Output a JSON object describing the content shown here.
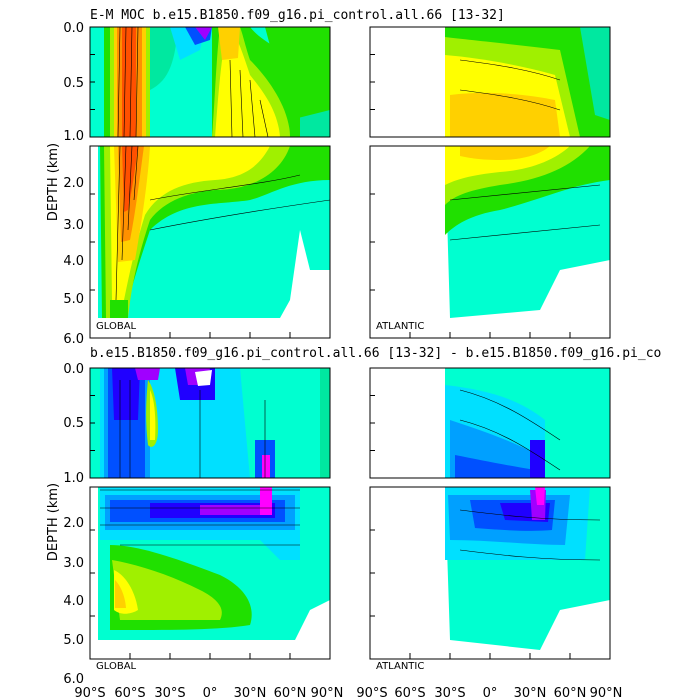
{
  "figure": {
    "title_top": "E-M MOC   b.e15.B1850.f09_g16.pi_control.all.66  [13-32]",
    "title_bottom": "b.e15.B1850.f09_g16.pi_control.all.66  [13-32]  -  b.e15.B1850.f09_g16.pi_co",
    "ylabel": "DEPTH (km)",
    "x_tick_labels_left": [
      "90°S",
      "60°S",
      "30°S",
      "0°",
      "30°N",
      "60°N",
      "90°N"
    ],
    "x_tick_labels_right": [
      "90°S",
      "60°S",
      "30°S",
      "0°",
      "30°N",
      "60°N",
      "90°N"
    ],
    "y_tick_labels_upper": [
      "0.0",
      "0.5",
      "1.0"
    ],
    "y_tick_labels_lower": [
      "2.0",
      "3.0",
      "4.0",
      "5.0",
      "6.0"
    ],
    "region_labels": [
      "GLOBAL",
      "ATLANTIC",
      "GLOBAL",
      "ATLANTIC"
    ]
  },
  "colors": {
    "full_palette": [
      "#00ffd0",
      "#00e8a0",
      "#20e000",
      "#a0f000",
      "#ffff00",
      "#ffd000",
      "#ff9000",
      "#ff5000"
    ],
    "diff_palette": [
      "#00e0ff",
      "#00a0ff",
      "#0050ff",
      "#2000ff",
      "#a000ff",
      "#ff00ff"
    ]
  },
  "chart_data": [
    {
      "type": "heatmap",
      "title": "E-M MOC   b.e15.B1850.f09_g16.pi_control.all.66  [13-32]",
      "region": "GLOBAL",
      "xlabel": "",
      "ylabel": "DEPTH (km)",
      "xlim": [
        -90,
        90
      ],
      "ylim": [
        6.0,
        0.0
      ],
      "x_ticks": [
        -90,
        -60,
        -30,
        0,
        30,
        60,
        90
      ],
      "y_ticks": [
        0.0,
        0.5,
        1.0,
        2.0,
        3.0,
        4.0,
        5.0,
        6.0
      ],
      "depth_break_km": 1.0,
      "grid": false,
      "lat_extent": [
        -78,
        65
      ],
      "max_depth_km": 5.5,
      "features": [
        {
          "lat": -48,
          "depth_km": 1.5,
          "value": 28,
          "kind": "max"
        },
        {
          "lat": -5,
          "depth_km": 0.05,
          "value": -12,
          "kind": "min"
        },
        {
          "lat": 20,
          "depth_km": 0.8,
          "value": 14,
          "kind": "max"
        },
        {
          "lat": 30,
          "depth_km": 3.5,
          "value": -2,
          "kind": "min"
        }
      ]
    },
    {
      "type": "heatmap",
      "region": "ATLANTIC",
      "xlim": [
        -90,
        90
      ],
      "ylim": [
        6.0,
        0.0
      ],
      "x_ticks": [
        -90,
        -60,
        -30,
        0,
        30,
        60,
        90
      ],
      "depth_break_km": 1.0,
      "grid": false,
      "lat_extent": [
        -34,
        90
      ],
      "max_depth_km": 5.5,
      "features": [
        {
          "lat": 25,
          "depth_km": 1.0,
          "value": 18,
          "kind": "max"
        }
      ]
    },
    {
      "type": "heatmap",
      "title": "b.e15.B1850.f09_g16.pi_control.all.66  [13-32]  -  b.e15.B1850.f09_g16.pi_co",
      "region": "GLOBAL",
      "ylabel": "DEPTH (km)",
      "xlim": [
        -90,
        90
      ],
      "ylim": [
        6.0,
        0.0
      ],
      "x_ticks": [
        -90,
        -60,
        -30,
        0,
        30,
        60,
        90
      ],
      "depth_break_km": 1.0,
      "grid": false,
      "lat_extent": [
        -78,
        65
      ],
      "max_depth_km": 5.5,
      "features": [
        {
          "lat": 40,
          "depth_km": 1.6,
          "value": -8,
          "kind": "min"
        },
        {
          "lat": -40,
          "depth_km": 3.8,
          "value": 4,
          "kind": "max"
        }
      ]
    },
    {
      "type": "heatmap",
      "region": "ATLANTIC",
      "xlim": [
        -90,
        90
      ],
      "ylim": [
        6.0,
        0.0
      ],
      "x_ticks": [
        -90,
        -60,
        -30,
        0,
        30,
        60,
        90
      ],
      "depth_break_km": 1.0,
      "grid": false,
      "lat_extent": [
        -34,
        90
      ],
      "max_depth_km": 5.5,
      "features": [
        {
          "lat": 35,
          "depth_km": 1.6,
          "value": -7,
          "kind": "min"
        }
      ]
    }
  ]
}
